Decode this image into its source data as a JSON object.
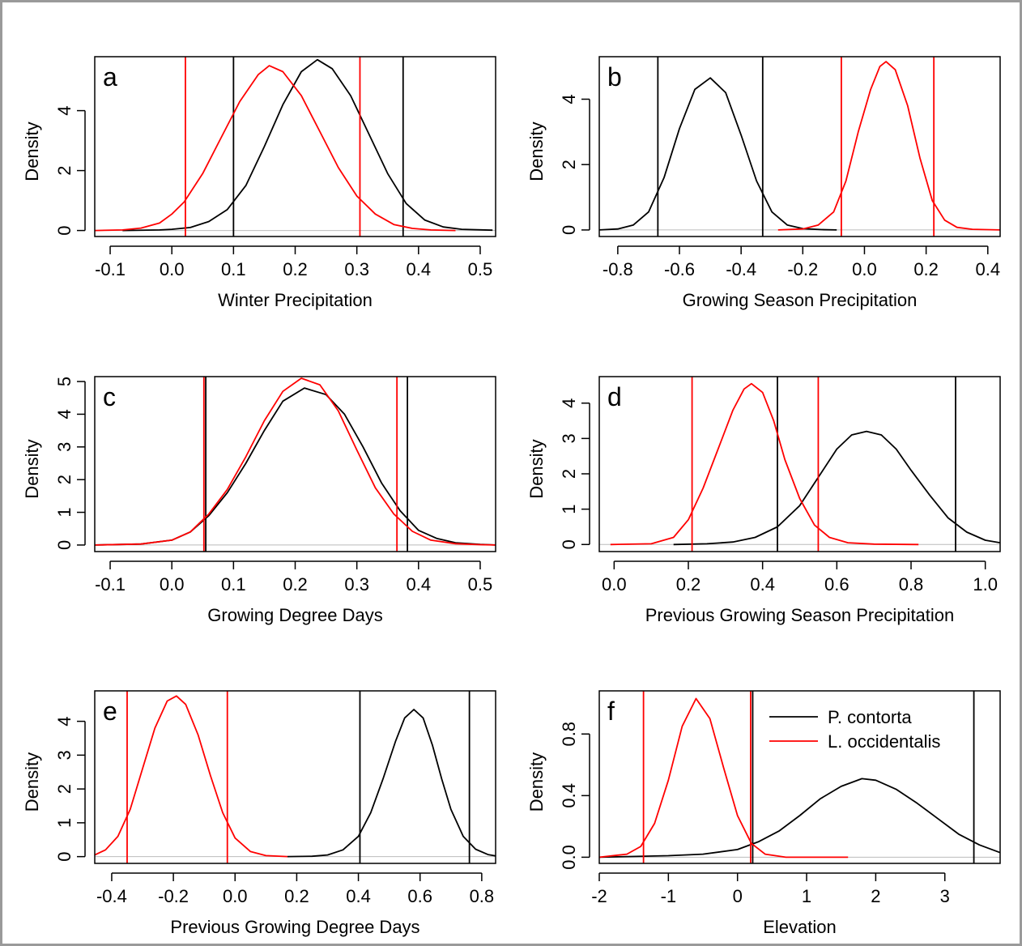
{
  "legend": {
    "entries": [
      {
        "name": "P. contorta",
        "color": "#000000"
      },
      {
        "name": "L. occidentalis",
        "color": "#ff0000"
      }
    ],
    "placement": "top-right of panel f"
  },
  "colors": {
    "p_contorta": "#000000",
    "l_occidentalis": "#ff0000",
    "zero_line": "#bbbbbb",
    "frame": "#9a9a9a"
  },
  "chart_data": [
    {
      "type": "line",
      "panel_letter": "a",
      "xlabel": "Winter Precipitation",
      "ylabel": "Density",
      "xlim": [
        -0.125,
        0.525
      ],
      "ylim": [
        -0.2,
        5.8
      ],
      "xticks": [
        -0.1,
        0.0,
        0.1,
        0.2,
        0.3,
        0.4,
        0.5
      ],
      "xtick_labels": [
        "-0.1",
        "0.0",
        "0.1",
        "0.2",
        "0.3",
        "0.4",
        "0.5"
      ],
      "yticks": [
        0,
        2,
        4
      ],
      "ytick_labels": [
        "0",
        "2",
        "4"
      ],
      "grid": false,
      "zero_line": true,
      "series": [
        {
          "name": "P. contorta",
          "color": "#000000",
          "x": [
            -0.08,
            -0.02,
            0.0,
            0.03,
            0.06,
            0.09,
            0.12,
            0.15,
            0.18,
            0.21,
            0.236,
            0.26,
            0.29,
            0.32,
            0.35,
            0.38,
            0.41,
            0.44,
            0.47,
            0.52
          ],
          "y": [
            0.0,
            0.02,
            0.04,
            0.1,
            0.3,
            0.7,
            1.5,
            2.8,
            4.2,
            5.3,
            5.7,
            5.4,
            4.5,
            3.2,
            1.9,
            0.9,
            0.35,
            0.12,
            0.04,
            0.01
          ],
          "interval": [
            0.1,
            0.375
          ]
        },
        {
          "name": "L. occidentalis",
          "color": "#ff0000",
          "x": [
            -0.125,
            -0.08,
            -0.05,
            -0.02,
            0.0,
            0.02,
            0.05,
            0.08,
            0.11,
            0.14,
            0.158,
            0.18,
            0.21,
            0.24,
            0.27,
            0.3,
            0.33,
            0.36,
            0.39,
            0.42,
            0.46
          ],
          "y": [
            0.0,
            0.02,
            0.08,
            0.25,
            0.55,
            0.95,
            1.9,
            3.1,
            4.3,
            5.2,
            5.5,
            5.3,
            4.5,
            3.3,
            2.1,
            1.15,
            0.55,
            0.2,
            0.07,
            0.02,
            0.0
          ],
          "interval": [
            0.022,
            0.305
          ]
        }
      ]
    },
    {
      "type": "line",
      "panel_letter": "b",
      "xlabel": "Growing Season Precipitation",
      "ylabel": "Density",
      "xlim": [
        -0.86,
        0.44
      ],
      "ylim": [
        -0.2,
        5.3
      ],
      "xticks": [
        -0.8,
        -0.6,
        -0.4,
        -0.2,
        0.0,
        0.2,
        0.4
      ],
      "xtick_labels": [
        "-0.8",
        "-0.6",
        "-0.4",
        "-0.2",
        "0.0",
        "0.2",
        "0.4"
      ],
      "yticks": [
        0,
        2,
        4
      ],
      "ytick_labels": [
        "0",
        "2",
        "4"
      ],
      "grid": false,
      "zero_line": true,
      "series": [
        {
          "name": "P. contorta",
          "color": "#000000",
          "x": [
            -0.86,
            -0.8,
            -0.75,
            -0.7,
            -0.65,
            -0.6,
            -0.55,
            -0.5,
            -0.45,
            -0.4,
            -0.35,
            -0.3,
            -0.25,
            -0.2,
            -0.14,
            -0.09
          ],
          "y": [
            0.0,
            0.03,
            0.15,
            0.55,
            1.6,
            3.1,
            4.3,
            4.65,
            4.2,
            2.9,
            1.5,
            0.55,
            0.15,
            0.04,
            0.01,
            0.0
          ],
          "interval": [
            -0.67,
            -0.33
          ]
        },
        {
          "name": "L. occidentalis",
          "color": "#ff0000",
          "x": [
            -0.28,
            -0.2,
            -0.15,
            -0.1,
            -0.06,
            -0.02,
            0.02,
            0.05,
            0.07,
            0.1,
            0.14,
            0.18,
            0.22,
            0.26,
            0.3,
            0.35,
            0.44
          ],
          "y": [
            0.0,
            0.03,
            0.15,
            0.55,
            1.5,
            3.0,
            4.3,
            5.0,
            5.15,
            4.9,
            3.8,
            2.2,
            0.9,
            0.3,
            0.08,
            0.02,
            0.0
          ],
          "interval": [
            -0.075,
            0.225
          ]
        }
      ]
    },
    {
      "type": "line",
      "panel_letter": "c",
      "xlabel": "Growing Degree Days",
      "ylabel": "Density",
      "xlim": [
        -0.125,
        0.525
      ],
      "ylim": [
        -0.2,
        5.15
      ],
      "xticks": [
        -0.1,
        0.0,
        0.1,
        0.2,
        0.3,
        0.4,
        0.5
      ],
      "xtick_labels": [
        "-0.1",
        "0.0",
        "0.1",
        "0.2",
        "0.3",
        "0.4",
        "0.5"
      ],
      "yticks": [
        0,
        1,
        2,
        3,
        4,
        5
      ],
      "ytick_labels": [
        "0",
        "1",
        "2",
        "3",
        "4",
        "5"
      ],
      "grid": false,
      "zero_line": true,
      "series": [
        {
          "name": "P. contorta",
          "color": "#000000",
          "x": [
            -0.125,
            -0.05,
            0.0,
            0.03,
            0.06,
            0.09,
            0.12,
            0.15,
            0.18,
            0.215,
            0.25,
            0.28,
            0.31,
            0.34,
            0.37,
            0.4,
            0.43,
            0.46,
            0.5,
            0.525
          ],
          "y": [
            0.0,
            0.03,
            0.15,
            0.4,
            0.9,
            1.6,
            2.5,
            3.5,
            4.4,
            4.8,
            4.6,
            4.0,
            3.0,
            1.9,
            1.05,
            0.45,
            0.2,
            0.07,
            0.02,
            0.0
          ],
          "interval": [
            0.055,
            0.382
          ]
        },
        {
          "name": "L. occidentalis",
          "color": "#ff0000",
          "x": [
            -0.125,
            -0.05,
            0.0,
            0.03,
            0.06,
            0.09,
            0.12,
            0.15,
            0.18,
            0.21,
            0.24,
            0.27,
            0.3,
            0.33,
            0.36,
            0.39,
            0.42,
            0.46,
            0.5,
            0.525
          ],
          "y": [
            0.0,
            0.03,
            0.15,
            0.4,
            0.95,
            1.7,
            2.7,
            3.8,
            4.7,
            5.1,
            4.9,
            4.1,
            2.9,
            1.75,
            0.95,
            0.42,
            0.15,
            0.04,
            0.01,
            0.0
          ],
          "interval": [
            0.052,
            0.365
          ]
        }
      ]
    },
    {
      "type": "line",
      "panel_letter": "d",
      "xlabel": "Previous Growing Season Precipitation",
      "ylabel": "Density",
      "xlim": [
        -0.04,
        1.04
      ],
      "ylim": [
        -0.2,
        4.75
      ],
      "xticks": [
        0.0,
        0.2,
        0.4,
        0.6,
        0.8,
        1.0
      ],
      "xtick_labels": [
        "0.0",
        "0.2",
        "0.4",
        "0.6",
        "0.8",
        "1.0"
      ],
      "yticks": [
        0,
        1,
        2,
        3,
        4
      ],
      "ytick_labels": [
        "0",
        "1",
        "2",
        "3",
        "4"
      ],
      "grid": false,
      "zero_line": true,
      "series": [
        {
          "name": "P. contorta",
          "color": "#000000",
          "x": [
            0.16,
            0.25,
            0.32,
            0.38,
            0.44,
            0.5,
            0.55,
            0.6,
            0.64,
            0.68,
            0.72,
            0.76,
            0.8,
            0.85,
            0.9,
            0.95,
            1.0,
            1.04
          ],
          "y": [
            0.0,
            0.02,
            0.07,
            0.2,
            0.5,
            1.1,
            1.9,
            2.7,
            3.1,
            3.2,
            3.1,
            2.7,
            2.1,
            1.4,
            0.75,
            0.35,
            0.12,
            0.05
          ],
          "interval": [
            0.44,
            0.92
          ]
        },
        {
          "name": "L. occidentalis",
          "color": "#ff0000",
          "x": [
            -0.01,
            0.1,
            0.16,
            0.2,
            0.24,
            0.28,
            0.32,
            0.35,
            0.37,
            0.4,
            0.43,
            0.46,
            0.5,
            0.54,
            0.58,
            0.63,
            0.7,
            0.82
          ],
          "y": [
            0.0,
            0.02,
            0.2,
            0.7,
            1.6,
            2.7,
            3.8,
            4.4,
            4.55,
            4.3,
            3.5,
            2.4,
            1.3,
            0.55,
            0.2,
            0.05,
            0.01,
            0.0
          ],
          "interval": [
            0.21,
            0.55
          ]
        }
      ]
    },
    {
      "type": "line",
      "panel_letter": "e",
      "xlabel": "Previous Growing Degree Days",
      "ylabel": "Density",
      "xlim": [
        -0.455,
        0.845
      ],
      "ylim": [
        -0.2,
        4.9
      ],
      "xticks": [
        -0.4,
        -0.2,
        0.0,
        0.2,
        0.4,
        0.6,
        0.8
      ],
      "xtick_labels": [
        "-0.4",
        "-0.2",
        "0.0",
        "0.2",
        "0.4",
        "0.6",
        "0.8"
      ],
      "yticks": [
        0,
        1,
        2,
        3,
        4
      ],
      "ytick_labels": [
        "0",
        "1",
        "2",
        "3",
        "4"
      ],
      "grid": false,
      "zero_line": true,
      "series": [
        {
          "name": "P. contorta",
          "color": "#000000",
          "x": [
            0.17,
            0.25,
            0.3,
            0.35,
            0.4,
            0.44,
            0.48,
            0.52,
            0.55,
            0.58,
            0.61,
            0.64,
            0.67,
            0.7,
            0.74,
            0.78,
            0.82,
            0.845
          ],
          "y": [
            0.0,
            0.01,
            0.05,
            0.2,
            0.6,
            1.3,
            2.3,
            3.4,
            4.1,
            4.35,
            4.1,
            3.3,
            2.3,
            1.4,
            0.6,
            0.22,
            0.06,
            0.02
          ],
          "interval": [
            0.405,
            0.76
          ]
        },
        {
          "name": "L. occidentalis",
          "color": "#ff0000",
          "x": [
            -0.455,
            -0.42,
            -0.38,
            -0.34,
            -0.3,
            -0.26,
            -0.22,
            -0.19,
            -0.16,
            -0.12,
            -0.08,
            -0.04,
            0.0,
            0.05,
            0.1,
            0.17
          ],
          "y": [
            0.05,
            0.2,
            0.6,
            1.4,
            2.6,
            3.8,
            4.6,
            4.75,
            4.5,
            3.6,
            2.4,
            1.3,
            0.55,
            0.15,
            0.03,
            0.0
          ],
          "interval": [
            -0.35,
            -0.025
          ]
        }
      ]
    },
    {
      "type": "line",
      "panel_letter": "f",
      "xlabel": "Elevation",
      "ylabel": "Density",
      "xlim": [
        -2.0,
        3.8
      ],
      "ylim": [
        -0.04,
        1.08
      ],
      "xticks": [
        -2,
        -1,
        0,
        1,
        2,
        3
      ],
      "xtick_labels": [
        "-2",
        "-1",
        "0",
        "1",
        "2",
        "3"
      ],
      "yticks": [
        0.0,
        0.4,
        0.8
      ],
      "ytick_labels": [
        "0.0",
        "0.4",
        "0.8"
      ],
      "grid": false,
      "zero_line": true,
      "series": [
        {
          "name": "P. contorta",
          "color": "#000000",
          "x": [
            -2.0,
            -1.0,
            -0.5,
            0.0,
            0.3,
            0.6,
            0.9,
            1.2,
            1.5,
            1.8,
            2.0,
            2.3,
            2.6,
            2.9,
            3.2,
            3.5,
            3.8
          ],
          "y": [
            0.0,
            0.01,
            0.02,
            0.05,
            0.1,
            0.17,
            0.27,
            0.38,
            0.46,
            0.51,
            0.5,
            0.44,
            0.35,
            0.25,
            0.15,
            0.08,
            0.03
          ],
          "interval": [
            0.22,
            3.42
          ]
        },
        {
          "name": "L. occidentalis",
          "color": "#ff0000",
          "x": [
            -2.0,
            -1.6,
            -1.4,
            -1.2,
            -1.0,
            -0.8,
            -0.6,
            -0.4,
            -0.2,
            0.0,
            0.2,
            0.4,
            0.7,
            1.0,
            1.6
          ],
          "y": [
            0.0,
            0.02,
            0.07,
            0.22,
            0.5,
            0.85,
            1.03,
            0.9,
            0.58,
            0.27,
            0.09,
            0.02,
            0.0,
            0.0,
            0.0
          ],
          "interval": [
            -1.36,
            0.19
          ]
        }
      ]
    }
  ]
}
